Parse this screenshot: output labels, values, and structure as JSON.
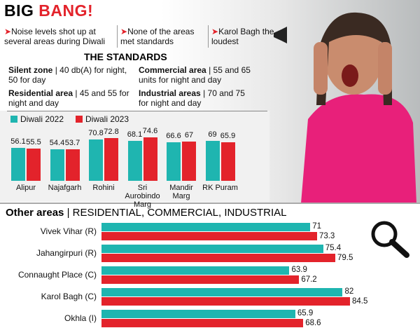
{
  "header": {
    "title_part1": "BIG",
    "title_part2": "BANG!",
    "bullets": [
      "Noise levels shot up at several areas during Diwali",
      "None of the areas met standards",
      "Karol Bagh the loudest"
    ]
  },
  "standards": {
    "title": "THE STANDARDS",
    "items": [
      {
        "label": "Silent zone",
        "text": "| 40 db(A) for night, 50 for day"
      },
      {
        "label": "Residential area",
        "text": "| 45 and 55 for night and day"
      },
      {
        "label": "Commercial area",
        "text": "| 55 and 65 units for night and day"
      },
      {
        "label": "Industrial areas",
        "text": "| 70 and 75 for night and day"
      }
    ]
  },
  "chart_data": [
    {
      "type": "bar",
      "orientation": "vertical",
      "categories": [
        "Alipur",
        "Najafgarh",
        "Rohini",
        "Sri Aurobindo Marg",
        "Mandir Marg",
        "RK Puram"
      ],
      "series": [
        {
          "name": "Diwali 2022",
          "color": "#1fb5b0",
          "values": [
            56.1,
            54.4,
            70.8,
            68.1,
            66.6,
            69
          ]
        },
        {
          "name": "Diwali 2023",
          "color": "#e3232b",
          "values": [
            55.5,
            53.7,
            72.8,
            74.6,
            67,
            65.9
          ]
        }
      ]
    },
    {
      "type": "bar",
      "orientation": "horizontal",
      "title": "Other areas",
      "subtitle": "| RESIDENTIAL, COMMERCIAL, INDUSTRIAL",
      "categories": [
        "Vivek Vihar (R)",
        "Jahangirpuri (R)",
        "Connaught Place (C)",
        "Karol Bagh (C)",
        "Okhla (I)"
      ],
      "series": [
        {
          "color": "#1fb5b0",
          "values": [
            71,
            75.4,
            63.9,
            82,
            65.9
          ]
        },
        {
          "color": "#e3232b",
          "values": [
            73.3,
            79.5,
            67.2,
            84.5,
            68.6
          ]
        }
      ]
    }
  ]
}
